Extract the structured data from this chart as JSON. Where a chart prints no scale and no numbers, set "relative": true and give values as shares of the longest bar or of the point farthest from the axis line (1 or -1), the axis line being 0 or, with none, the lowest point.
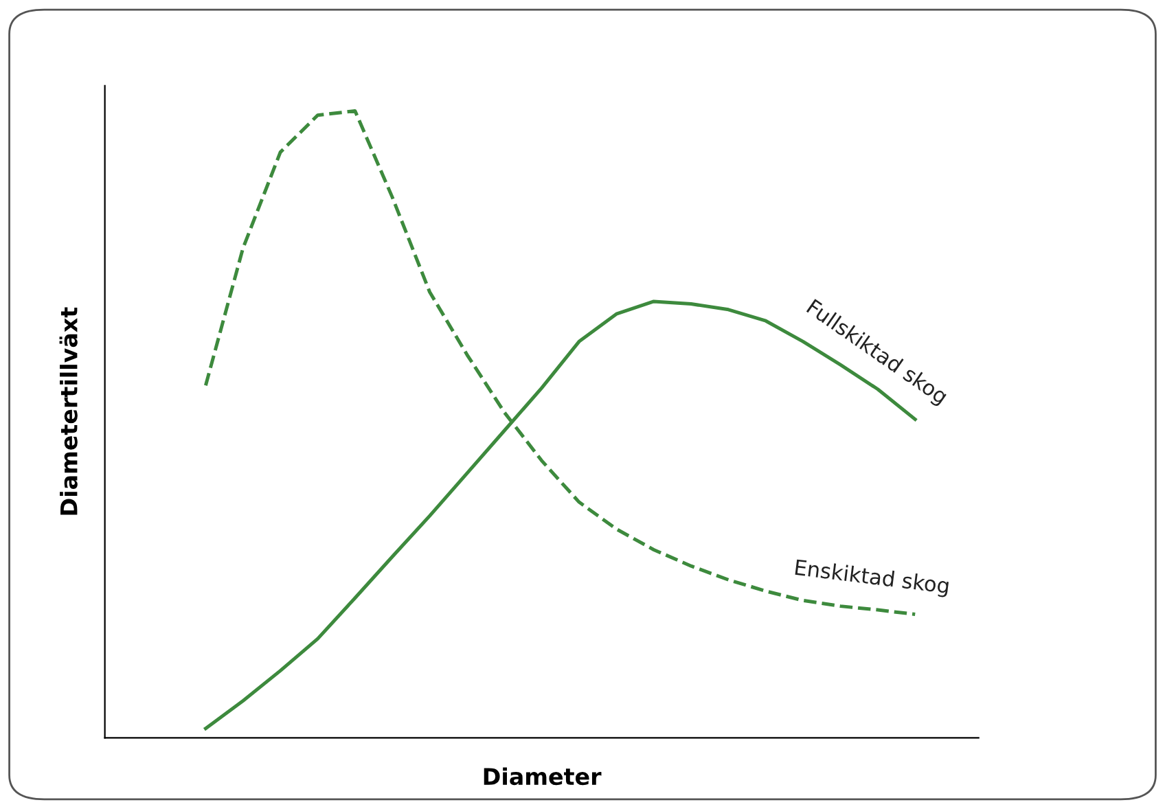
{
  "chart_data": {
    "type": "line",
    "relative": true,
    "xlabel": "Diameter",
    "ylabel": "Diametertillväxt",
    "marker": "none",
    "categories": [
      null,
      null,
      null,
      null,
      null,
      null,
      null,
      null,
      null,
      null,
      null,
      null,
      null,
      null,
      null,
      null,
      null,
      null,
      null,
      null
    ],
    "series": [
      {
        "name": "Fullskiktad skog",
        "color": "#3d8a3d",
        "line_style": "solid",
        "values": [
          0.015,
          0.059,
          0.107,
          0.158,
          0.223,
          0.289,
          0.354,
          0.422,
          0.49,
          0.558,
          0.632,
          0.676,
          0.696,
          0.692,
          0.683,
          0.665,
          0.632,
          0.595,
          0.556,
          0.508
        ]
      },
      {
        "name": "Enskiktad skog",
        "color": "#3d8a3d",
        "line_style": "dashed",
        "values": [
          0.562,
          0.781,
          0.934,
          0.993,
          1.0,
          0.862,
          0.711,
          0.611,
          0.519,
          0.442,
          0.376,
          0.333,
          0.3,
          0.274,
          0.252,
          0.234,
          0.219,
          0.21,
          0.204,
          0.197
        ]
      }
    ]
  }
}
